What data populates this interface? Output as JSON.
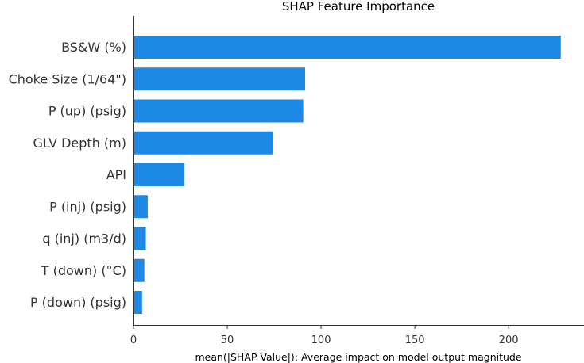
{
  "chart_data": {
    "type": "bar",
    "orientation": "horizontal",
    "title": "SHAP Feature Importance",
    "xlabel": "mean(|SHAP Value|): Average impact on model output magnitude",
    "ylabel": "",
    "xlim": [
      0,
      238
    ],
    "xticks": [
      0,
      50,
      100,
      150,
      200
    ],
    "grid": false,
    "categories": [
      "BS&W (%)",
      "Choke Size (1/64\")",
      "P (up) (psig)",
      "GLV Depth (m)",
      "API",
      "P (inj) (psig)",
      "q (inj) (m3/d)",
      "T (down) (°C)",
      "P (down) (psig)"
    ],
    "values": [
      227.8,
      91.5,
      90.5,
      74.5,
      27.2,
      7.6,
      6.6,
      5.8,
      4.6
    ],
    "bar_color": "#1e88e5"
  }
}
